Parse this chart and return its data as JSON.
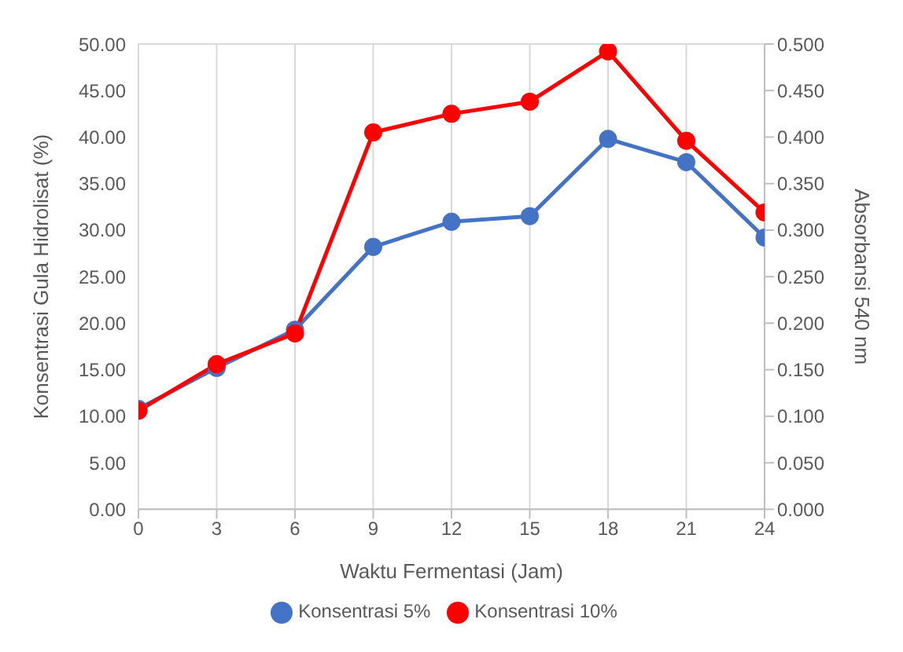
{
  "chart_data": {
    "type": "line",
    "xlabel": "Waktu Fermentasi (Jam)",
    "ylabel": "Konsentrasi Gula Hidrolisat (%)",
    "y2label": "Absorbansi 540 nm",
    "x": [
      0,
      3,
      6,
      9,
      12,
      15,
      18,
      21,
      24
    ],
    "series": [
      {
        "name": "Konsentrasi 5%",
        "color": "#4472c4",
        "values": [
          10.8,
          15.2,
          19.3,
          28.2,
          30.9,
          31.5,
          39.8,
          37.3,
          29.2
        ]
      },
      {
        "name": "Konsentrasi 10%",
        "color": "#ff0000",
        "values": [
          10.6,
          15.6,
          18.9,
          40.5,
          42.5,
          43.8,
          49.2,
          39.6,
          31.9
        ]
      }
    ],
    "xlim": [
      0,
      24
    ],
    "xticks": [
      0,
      3,
      6,
      9,
      12,
      15,
      18,
      21,
      24
    ],
    "ylim": [
      0,
      50
    ],
    "yticks": [
      {
        "value": 0,
        "label": "0.00"
      },
      {
        "value": 5,
        "label": "5.00"
      },
      {
        "value": 10,
        "label": "10.00"
      },
      {
        "value": 15,
        "label": "15.00"
      },
      {
        "value": 20,
        "label": "20.00"
      },
      {
        "value": 25,
        "label": "25.00"
      },
      {
        "value": 30,
        "label": "30.00"
      },
      {
        "value": 35,
        "label": "35.00"
      },
      {
        "value": 40,
        "label": "40.00"
      },
      {
        "value": 45,
        "label": "45.00"
      },
      {
        "value": 50,
        "label": "50.00"
      }
    ],
    "y2lim": [
      0,
      0.5
    ],
    "y2ticks": [
      {
        "value": 0,
        "label": "0.000"
      },
      {
        "value": 0.05,
        "label": "0.050"
      },
      {
        "value": 0.1,
        "label": "0.100"
      },
      {
        "value": 0.15,
        "label": "0.150"
      },
      {
        "value": 0.2,
        "label": "0.200"
      },
      {
        "value": 0.25,
        "label": "0.250"
      },
      {
        "value": 0.3,
        "label": "0.300"
      },
      {
        "value": 0.35,
        "label": "0.350"
      },
      {
        "value": 0.4,
        "label": "0.400"
      },
      {
        "value": 0.45,
        "label": "0.450"
      },
      {
        "value": 0.5,
        "label": "0.500"
      }
    ],
    "grid": true,
    "legend": "bottom",
    "marker": "circle",
    "line_style": "solid"
  }
}
